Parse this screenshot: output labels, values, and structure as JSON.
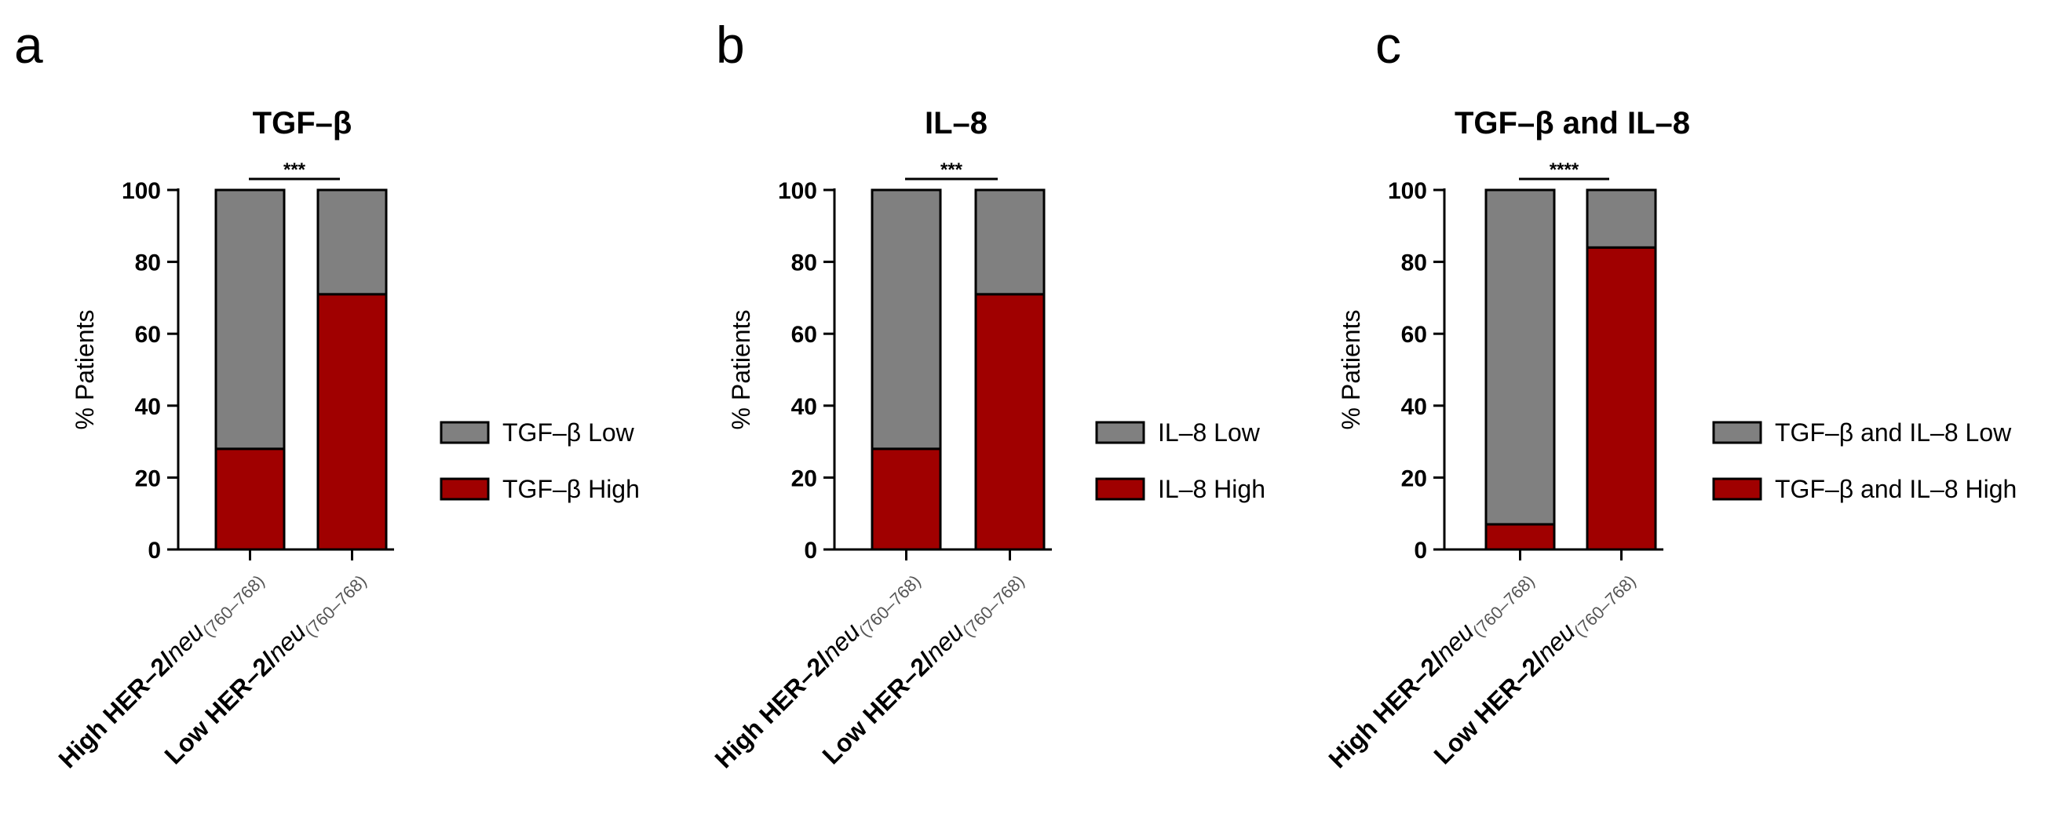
{
  "chart_data": [
    {
      "panel": "a",
      "type": "bar",
      "stacked": true,
      "title": "TGF–β",
      "ylabel": "% Patients",
      "ylim": [
        0,
        100
      ],
      "yticks": [
        "0",
        "20",
        "40",
        "60",
        "80",
        "100"
      ],
      "categories": [
        {
          "main": "High HER–2/",
          "italic": "neu",
          "sub": "(760–768)"
        },
        {
          "main": "Low HER–2/",
          "italic": "neu",
          "sub": "(760–768)"
        }
      ],
      "series": [
        {
          "name": "TGF–β High",
          "color": "#a00000",
          "values": [
            28,
            71
          ]
        },
        {
          "name": "TGF–β Low",
          "color": "#808080",
          "values": [
            72,
            29
          ]
        }
      ],
      "significance": "***",
      "legend_position": "right"
    },
    {
      "panel": "b",
      "type": "bar",
      "stacked": true,
      "title": "IL–8",
      "ylabel": "% Patients",
      "ylim": [
        0,
        100
      ],
      "yticks": [
        "0",
        "20",
        "40",
        "60",
        "80",
        "100"
      ],
      "categories": [
        {
          "main": "High HER–2/",
          "italic": "neu",
          "sub": "(760–768)"
        },
        {
          "main": "Low HER–2/",
          "italic": "neu",
          "sub": "(760–768)"
        }
      ],
      "series": [
        {
          "name": "IL–8 High",
          "color": "#a00000",
          "values": [
            28,
            71
          ]
        },
        {
          "name": "IL–8 Low",
          "color": "#808080",
          "values": [
            72,
            29
          ]
        }
      ],
      "significance": "***",
      "legend_position": "right"
    },
    {
      "panel": "c",
      "type": "bar",
      "stacked": true,
      "title": "TGF–β and IL–8",
      "ylabel": "% Patients",
      "ylim": [
        0,
        100
      ],
      "yticks": [
        "0",
        "20",
        "40",
        "60",
        "80",
        "100"
      ],
      "categories": [
        {
          "main": "High HER–2/",
          "italic": "neu",
          "sub": "(760–768)"
        },
        {
          "main": "Low HER–2/",
          "italic": "neu",
          "sub": "(760–768)"
        }
      ],
      "series": [
        {
          "name": "TGF–β and IL–8 High",
          "color": "#a00000",
          "values": [
            7,
            84
          ]
        },
        {
          "name": "TGF–β and IL–8 Low",
          "color": "#808080",
          "values": [
            93,
            16
          ]
        }
      ],
      "significance": "****",
      "legend_position": "right"
    }
  ]
}
